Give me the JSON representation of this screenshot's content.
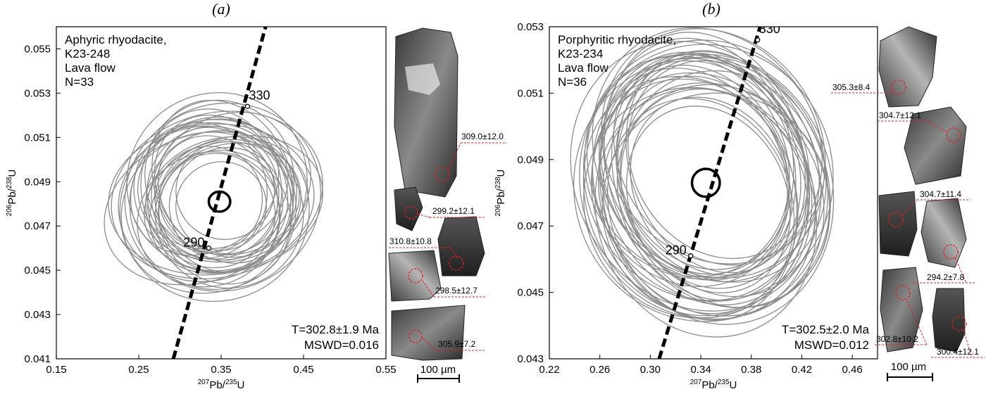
{
  "chart_data": [
    {
      "type": "scatter",
      "panel_label": "(a)",
      "xlabel": {
        "sup": "207",
        "base": "Pb/",
        "sup2": "235",
        "tail": "U"
      },
      "ylabel": {
        "sup": "206",
        "base": "Pb/",
        "sup2": "238",
        "tail": "U"
      },
      "xlim": [
        0.15,
        0.55
      ],
      "ylim": [
        0.041,
        0.056
      ],
      "xticks": [
        0.15,
        0.25,
        0.35,
        0.45,
        0.55
      ],
      "yticks": [
        0.041,
        0.043,
        0.045,
        0.047,
        0.049,
        0.051,
        0.053,
        0.055
      ],
      "info_lines": [
        "Aphyric rhyodacite,",
        "K23-248",
        "Lava flow",
        "N=33"
      ],
      "result_lines": [
        "T=302.8±1.9 Ma",
        "MSWD=0.016"
      ],
      "concordia": [
        [
          0.292,
          0.041
        ],
        [
          0.404,
          0.056
        ]
      ],
      "concordia_markers": [
        {
          "label": "290",
          "x": 0.335,
          "y": 0.046
        },
        {
          "label": "330",
          "x": 0.382,
          "y": 0.0524
        }
      ],
      "mean_ellipse": {
        "x": 0.348,
        "y": 0.0481,
        "rx": 0.013,
        "ry": 0.00045
      },
      "analysis_ellipses": [
        [
          0.348,
          0.0481,
          0.09,
          0.0032,
          -20
        ],
        [
          0.34,
          0.0485,
          0.08,
          0.003,
          -15
        ],
        [
          0.355,
          0.0478,
          0.095,
          0.0028,
          -25
        ],
        [
          0.33,
          0.048,
          0.105,
          0.0035,
          -10
        ],
        [
          0.345,
          0.049,
          0.11,
          0.004,
          -30
        ],
        [
          0.36,
          0.0483,
          0.085,
          0.0026,
          -5
        ],
        [
          0.325,
          0.0478,
          0.12,
          0.0033,
          -20
        ],
        [
          0.35,
          0.0488,
          0.075,
          0.0034,
          -35
        ],
        [
          0.335,
          0.0482,
          0.065,
          0.0024,
          -15
        ],
        [
          0.345,
          0.0476,
          0.07,
          0.0027,
          -25
        ],
        [
          0.355,
          0.0486,
          0.06,
          0.0022,
          -30
        ],
        [
          0.34,
          0.0479,
          0.1,
          0.0038,
          -40
        ],
        [
          0.365,
          0.048,
          0.11,
          0.003,
          -15
        ],
        [
          0.338,
          0.0487,
          0.085,
          0.0036,
          -10
        ],
        [
          0.352,
          0.0483,
          0.12,
          0.0042,
          -25
        ],
        [
          0.33,
          0.0488,
          0.095,
          0.0029,
          -35
        ],
        [
          0.36,
          0.0475,
          0.09,
          0.0033,
          -20
        ],
        [
          0.345,
          0.0484,
          0.13,
          0.0037,
          -15
        ],
        [
          0.325,
          0.0486,
          0.08,
          0.0031,
          -30
        ],
        [
          0.356,
          0.048,
          0.07,
          0.0025,
          -40
        ],
        [
          0.342,
          0.0477,
          0.115,
          0.0041,
          -10
        ],
        [
          0.348,
          0.0492,
          0.09,
          0.0035,
          -20
        ],
        [
          0.335,
          0.0473,
          0.088,
          0.003,
          -25
        ],
        [
          0.362,
          0.0488,
          0.1,
          0.0032,
          -30
        ],
        [
          0.35,
          0.0479,
          0.055,
          0.002,
          -15
        ],
        [
          0.338,
          0.0482,
          0.125,
          0.0034,
          -5
        ],
        [
          0.346,
          0.0486,
          0.068,
          0.003,
          -35
        ],
        [
          0.352,
          0.049,
          0.082,
          0.0038,
          -25
        ],
        [
          0.333,
          0.0476,
          0.105,
          0.0036,
          -20
        ],
        [
          0.358,
          0.0482,
          0.098,
          0.0028,
          -10
        ],
        [
          0.345,
          0.048,
          0.072,
          0.0032,
          -30
        ],
        [
          0.34,
          0.0489,
          0.092,
          0.0029,
          -15
        ],
        [
          0.354,
          0.0474,
          0.078,
          0.0031,
          -40
        ]
      ],
      "grain_ages": [
        "309.0±12.0",
        "299.2±12.1",
        "310.8±10.8",
        "298.5±12.7",
        "305.9±7.2"
      ],
      "scale_bar": "100 µm"
    },
    {
      "type": "scatter",
      "panel_label": "(b)",
      "xlabel": {
        "sup": "207",
        "base": "Pb/",
        "sup2": "235",
        "tail": "U"
      },
      "ylabel": {
        "sup": "206",
        "base": "Pb/",
        "sup2": "238",
        "tail": "U"
      },
      "xlim": [
        0.22,
        0.48
      ],
      "ylim": [
        0.043,
        0.053
      ],
      "xticks": [
        0.22,
        0.26,
        0.3,
        0.34,
        0.38,
        0.42,
        0.46
      ],
      "yticks": [
        0.043,
        0.045,
        0.047,
        0.049,
        0.051,
        0.053
      ],
      "info_lines": [
        "Porphyritic rhyodacite,",
        "K23-234",
        "Lava flow",
        "N=36"
      ],
      "result_lines": [
        "T=302.5±2.0 Ma",
        "MSWD=0.012"
      ],
      "concordia": [
        [
          0.307,
          0.043
        ],
        [
          0.387,
          0.053
        ]
      ],
      "concordia_markers": [
        {
          "label": "290",
          "x": 0.332,
          "y": 0.0461
        },
        {
          "label": "330",
          "x": 0.385,
          "y": 0.0526
        }
      ],
      "mean_ellipse": {
        "x": 0.344,
        "y": 0.0483,
        "rx": 0.011,
        "ry": 0.00042
      },
      "analysis_ellipses": [
        [
          0.344,
          0.0483,
          0.08,
          0.0038,
          -25
        ],
        [
          0.338,
          0.0488,
          0.075,
          0.0035,
          -20
        ],
        [
          0.35,
          0.0478,
          0.085,
          0.0036,
          -30
        ],
        [
          0.335,
          0.0482,
          0.09,
          0.004,
          -15
        ],
        [
          0.348,
          0.049,
          0.07,
          0.0034,
          -35
        ],
        [
          0.355,
          0.0485,
          0.078,
          0.0032,
          -20
        ],
        [
          0.332,
          0.0479,
          0.082,
          0.0037,
          -25
        ],
        [
          0.346,
          0.0492,
          0.088,
          0.0039,
          -30
        ],
        [
          0.34,
          0.0476,
          0.072,
          0.0033,
          -20
        ],
        [
          0.352,
          0.0481,
          0.092,
          0.0041,
          -15
        ],
        [
          0.342,
          0.0486,
          0.065,
          0.003,
          -25
        ],
        [
          0.336,
          0.0485,
          0.095,
          0.0042,
          -30
        ],
        [
          0.358,
          0.0479,
          0.08,
          0.0035,
          -35
        ],
        [
          0.344,
          0.0474,
          0.086,
          0.0038,
          -20
        ],
        [
          0.348,
          0.0487,
          0.074,
          0.0036,
          -10
        ],
        [
          0.33,
          0.0488,
          0.078,
          0.0034,
          -25
        ],
        [
          0.354,
          0.049,
          0.068,
          0.0031,
          -30
        ],
        [
          0.34,
          0.0481,
          0.1,
          0.004,
          -20
        ],
        [
          0.346,
          0.0478,
          0.062,
          0.0029,
          -25
        ],
        [
          0.35,
          0.0494,
          0.084,
          0.0037,
          -35
        ],
        [
          0.338,
          0.048,
          0.076,
          0.0039,
          -15
        ],
        [
          0.352,
          0.0476,
          0.09,
          0.0034,
          -20
        ],
        [
          0.334,
          0.0486,
          0.07,
          0.0033,
          -30
        ],
        [
          0.356,
          0.0484,
          0.082,
          0.004,
          -25
        ],
        [
          0.342,
          0.049,
          0.094,
          0.0036,
          -20
        ],
        [
          0.348,
          0.0482,
          0.06,
          0.0028,
          -30
        ],
        [
          0.336,
          0.0477,
          0.088,
          0.0035,
          -25
        ],
        [
          0.344,
          0.0488,
          0.078,
          0.0041,
          -15
        ],
        [
          0.354,
          0.048,
          0.072,
          0.0033,
          -35
        ],
        [
          0.34,
          0.0484,
          0.084,
          0.0037,
          -20
        ],
        [
          0.346,
          0.0486,
          0.098,
          0.0039,
          -25
        ],
        [
          0.332,
          0.0483,
          0.076,
          0.0032,
          -30
        ],
        [
          0.35,
          0.0489,
          0.066,
          0.0034,
          -20
        ],
        [
          0.342,
          0.0479,
          0.086,
          0.0038,
          -25
        ],
        [
          0.356,
          0.0487,
          0.08,
          0.0035,
          -30
        ],
        [
          0.338,
          0.0491,
          0.074,
          0.0036,
          -15
        ]
      ],
      "grain_ages": [
        "305.3±8.4",
        "304.7±12.1",
        "304.7±11.4",
        "294.2±7.8",
        "302.8±10.2",
        "300.4±12.1"
      ],
      "scale_bar": "100 µm"
    }
  ]
}
